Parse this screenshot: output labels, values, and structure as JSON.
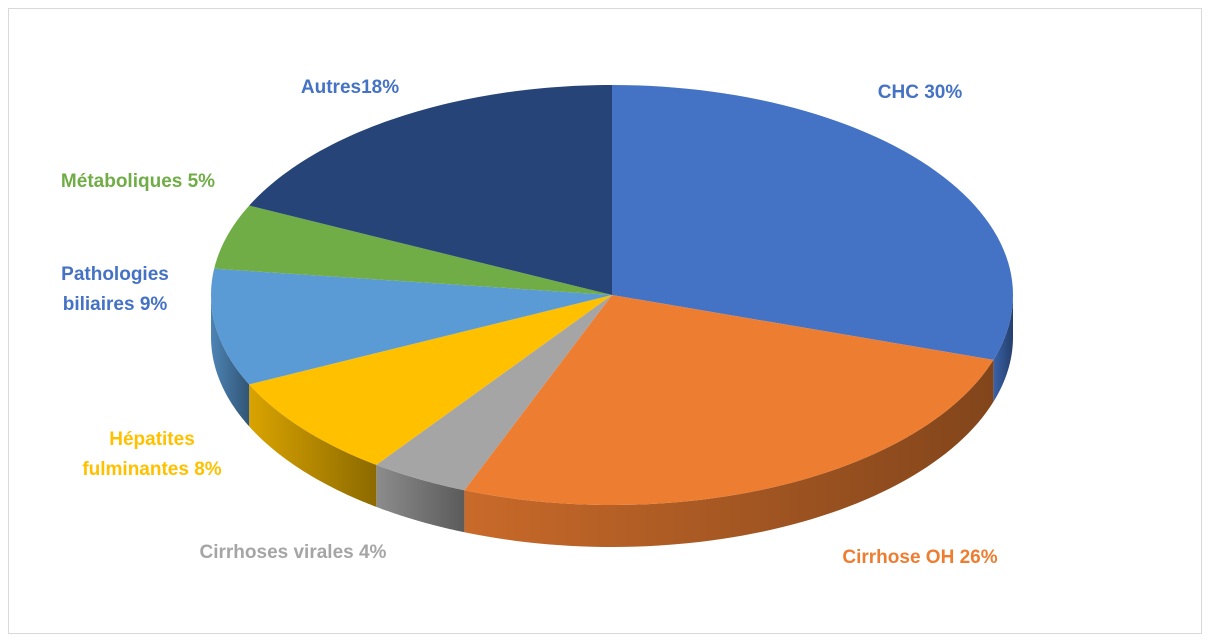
{
  "chart_data": {
    "type": "pie3d",
    "categories": [
      "CHC 30%",
      "Cirrhose OH 26%",
      "Cirrhoses virales 4%",
      "Hépatites fulminantes 8%",
      "Pathologies biliaires 9%",
      "Métaboliques 5%",
      "Autres18%"
    ],
    "values": [
      30,
      26,
      4,
      8,
      9,
      5,
      18
    ],
    "colors": [
      "#4472c4",
      "#ed7d31",
      "#a5a5a5",
      "#ffc000",
      "#5b9bd5",
      "#70ad47",
      "#264478"
    ]
  }
}
